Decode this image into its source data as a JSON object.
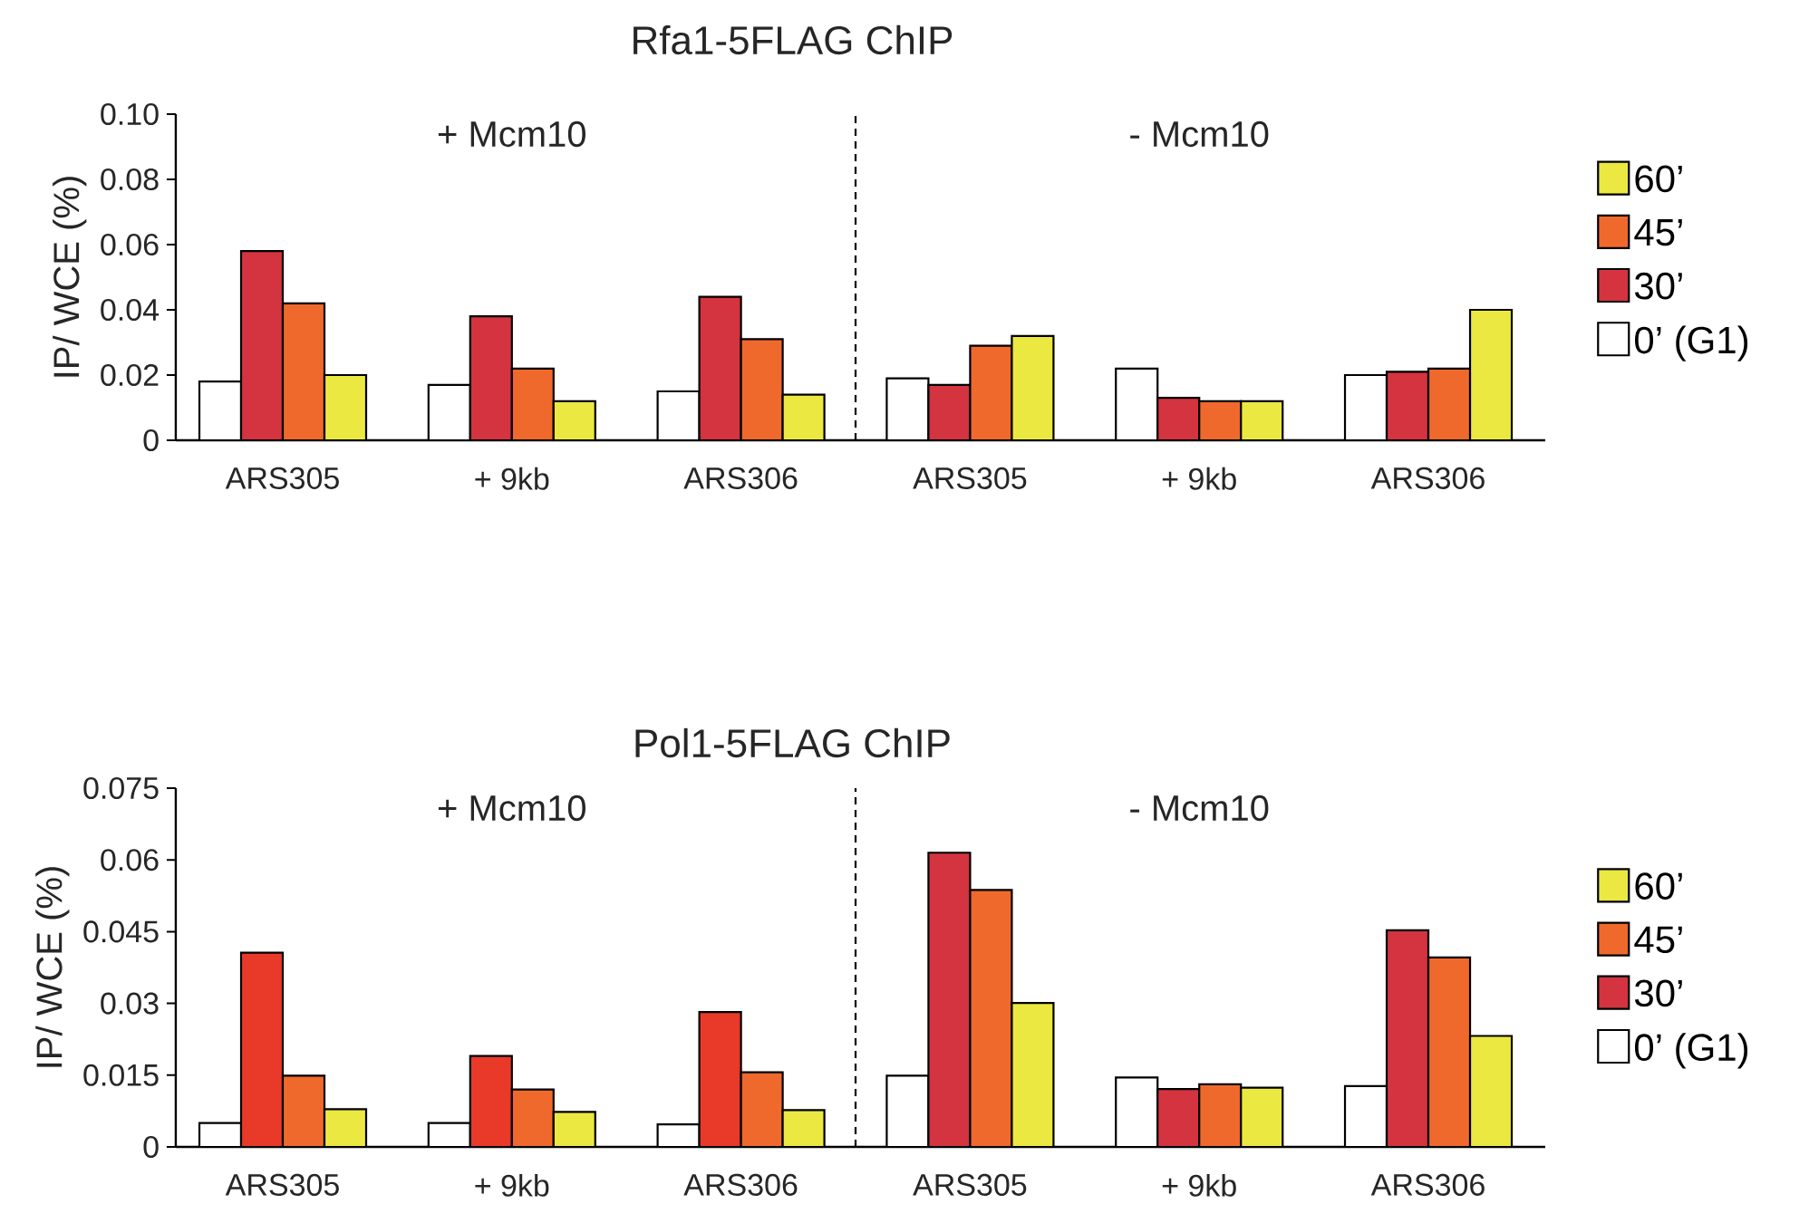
{
  "chart_data": [
    {
      "type": "bar",
      "title": "Rfa1-5FLAG ChIP",
      "ylabel": "IP/ WCE (%)",
      "categories": [
        "ARS305",
        "+ 9kb",
        "ARS306",
        "ARS305",
        "+ 9kb",
        "ARS306"
      ],
      "series": [
        {
          "name": "0’ (G1)",
          "color": "#ffffff",
          "values": [
            0.018,
            0.017,
            0.015,
            0.019,
            0.022,
            0.02
          ]
        },
        {
          "name": "30’",
          "color": "#d3343f",
          "values": [
            0.058,
            0.038,
            0.044,
            0.017,
            0.013,
            0.021
          ]
        },
        {
          "name": "45’",
          "color": "#f0692c",
          "values": [
            0.042,
            0.022,
            0.031,
            0.029,
            0.012,
            0.022
          ]
        },
        {
          "name": "60’",
          "color": "#ebe842",
          "values": [
            0.02,
            0.012,
            0.014,
            0.032,
            0.012,
            0.04
          ]
        }
      ],
      "ylim": [
        0,
        0.1
      ],
      "yticks": [
        0,
        0.02,
        0.04,
        0.06,
        0.08,
        {
          "value": 0.1,
          "label": "0.10"
        }
      ],
      "annotations": [
        "+ Mcm10",
        "- Mcm10"
      ],
      "legend": "right"
    },
    {
      "type": "bar",
      "title": "Pol1-5FLAG ChIP",
      "ylabel": "IP/ WCE (%)",
      "categories": [
        "ARS305",
        "+ 9kb",
        "ARS306",
        "ARS305",
        "+ 9kb",
        "ARS306"
      ],
      "series": [
        {
          "name": "0’ (G1)",
          "color": "#ffffff",
          "values": [
            0.005,
            0.005,
            0.0047,
            0.0149,
            0.0145,
            0.0127
          ]
        },
        {
          "name": "30’",
          "color": "#d3343f",
          "colors": [
            "#e93a29",
            "#e93a29",
            "#e93a29",
            "#d3343f",
            "#d3343f",
            "#d3343f"
          ],
          "values": [
            0.0406,
            0.019,
            0.0282,
            0.0615,
            0.0121,
            0.0453
          ]
        },
        {
          "name": "45’",
          "color": "#f0692c",
          "values": [
            0.0149,
            0.012,
            0.0156,
            0.0537,
            0.0131,
            0.0396
          ]
        },
        {
          "name": "60’",
          "color": "#ebe842",
          "values": [
            0.0079,
            0.0073,
            0.0077,
            0.0301,
            0.0124,
            0.0232
          ]
        }
      ],
      "ylim": [
        0,
        0.075
      ],
      "yticks": [
        0,
        0.015,
        0.03,
        0.045,
        0.06,
        0.075
      ],
      "annotations": [
        "+ Mcm10",
        "- Mcm10"
      ],
      "legend": "right"
    }
  ]
}
